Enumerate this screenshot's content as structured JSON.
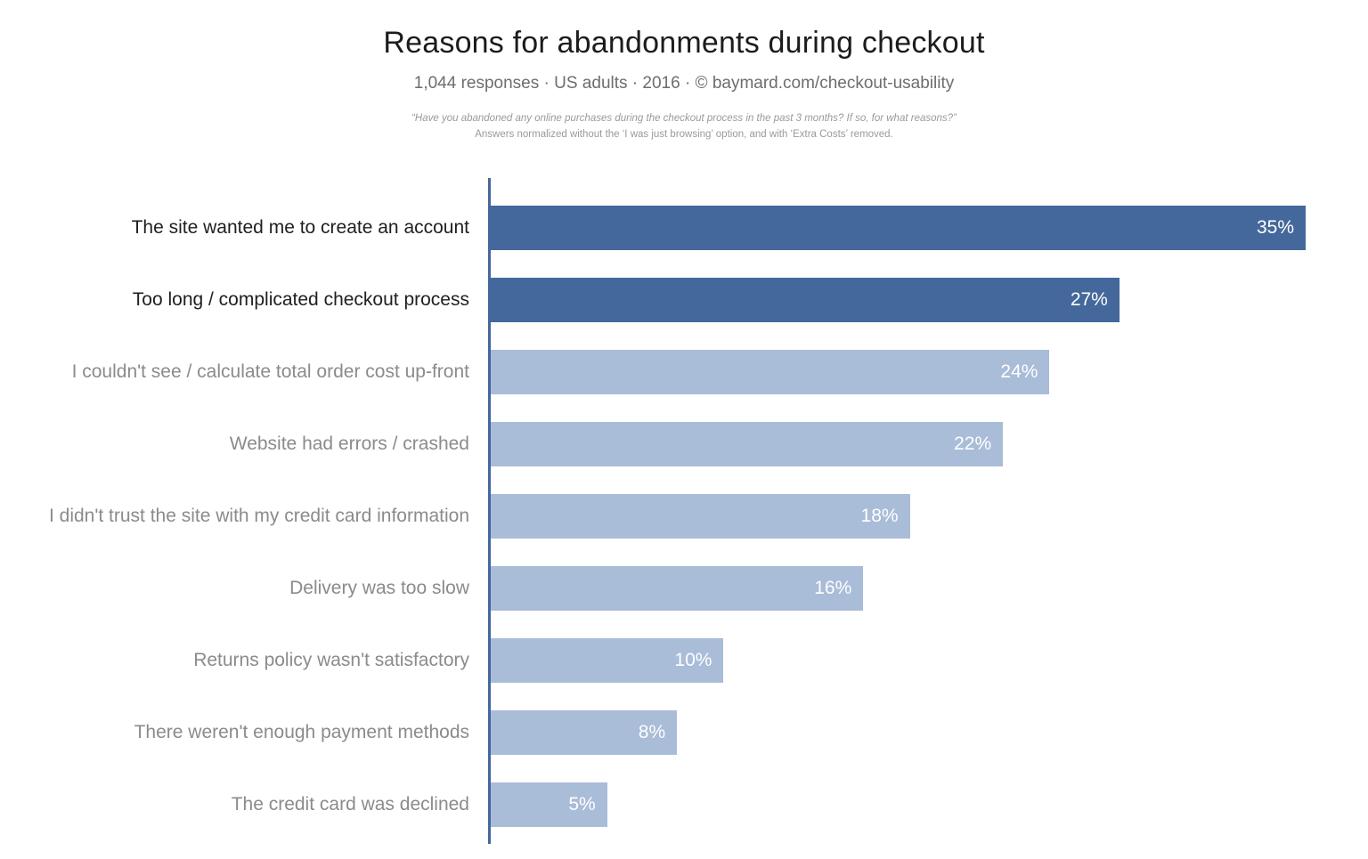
{
  "header": {
    "title": "Reasons for abandonments during checkout",
    "subtitle": "1,044 responses · US adults · 2016 · © baymard.com/checkout-usability",
    "footnote_line1": "“Have you abandoned any online purchases during the checkout process in the past 3 months? If so, for what reasons?”",
    "footnote_line2": "Answers normalized without the ‘I was just browsing’ option, and with ‘Extra Costs’ removed."
  },
  "chart_data": {
    "type": "bar",
    "orientation": "horizontal",
    "title": "Reasons for abandonments during checkout",
    "categories": [
      "The site wanted me to create an account",
      "Too long / complicated checkout process",
      "I couldn't see / calculate total order cost up-front",
      "Website had errors / crashed",
      "I didn't trust the site with my credit card information",
      "Delivery was too slow",
      "Returns policy wasn't satisfactory",
      "There weren't enough payment methods",
      "The credit card was declined"
    ],
    "values": [
      35,
      27,
      24,
      22,
      18,
      16,
      10,
      8,
      5
    ],
    "value_suffix": "%",
    "series_colors": [
      "dark",
      "dark",
      "light",
      "light",
      "light",
      "light",
      "light",
      "light",
      "light"
    ],
    "colors": {
      "dark_bar": "#44689B",
      "light_bar": "#A9BCD8",
      "axis": "#44689B",
      "dark_label": "#1f1f1f",
      "light_label": "#8b8b8b",
      "value_text": "#ffffff"
    },
    "xlim": [
      0,
      35
    ],
    "xlabel": "",
    "ylabel": "",
    "grid": false,
    "legend": false
  }
}
